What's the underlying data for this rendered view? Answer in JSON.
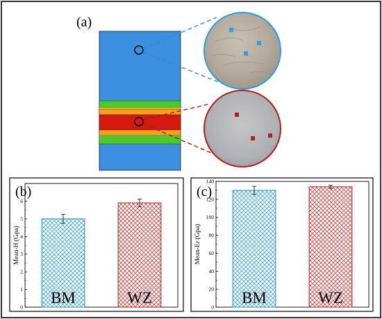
{
  "panels": {
    "a": {
      "label": "(a)"
    }
  },
  "colors": {
    "base_metal": "#3d8fe0",
    "weld_outer": "#4cc92a",
    "weld_mid": "#f5a020",
    "weld_core": "#d41a10",
    "bm_marker": "#2e9be6",
    "wz_marker": "#b01e1e",
    "bm_bar": "#48a6cf",
    "wz_bar": "#c04848"
  },
  "chart_data": [
    {
      "type": "bar",
      "panel_label": "(b)",
      "categories": [
        "BM",
        "WZ"
      ],
      "values": [
        5.0,
        5.9
      ],
      "errors": [
        0.25,
        0.22
      ],
      "ylabel": "Mean-H (Gpa)",
      "ylim": [
        0,
        7
      ],
      "yticks": [
        0,
        1,
        2,
        3,
        4,
        5,
        6
      ],
      "colors": [
        "#48a6cf",
        "#c04848"
      ],
      "title": "",
      "xlabel": "",
      "grid": false
    },
    {
      "type": "bar",
      "panel_label": "(c)",
      "categories": [
        "BM",
        "WZ"
      ],
      "values": [
        130,
        134
      ],
      "errors": [
        4.5,
        1.8
      ],
      "ylabel": "Mean-Er (Gpa)",
      "ylim": [
        0,
        140
      ],
      "yticks": [
        0,
        20,
        40,
        60,
        80,
        100,
        120,
        140
      ],
      "colors": [
        "#48a6cf",
        "#c04848"
      ],
      "title": "",
      "xlabel": "",
      "grid": false
    }
  ]
}
